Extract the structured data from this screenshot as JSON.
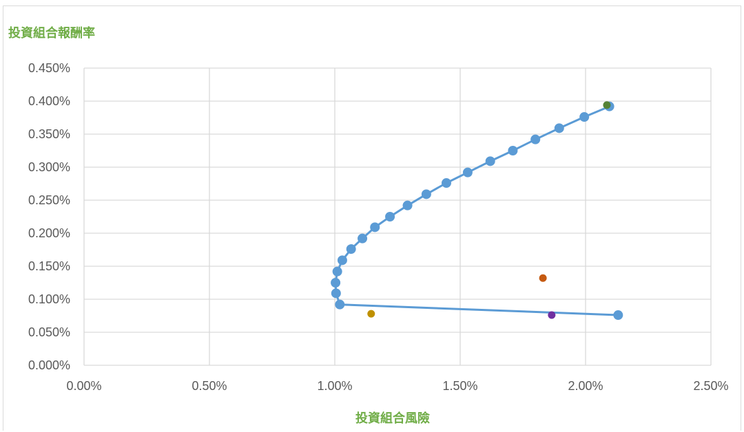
{
  "chart_data": {
    "type": "scatter",
    "title": "",
    "ylabel": "投資組合報酬率",
    "xlabel": "投資組合風險",
    "label_color": "#70ad47",
    "xlim": [
      0.0,
      2.5
    ],
    "ylim": [
      0.0,
      0.45
    ],
    "x_ticks": [
      "0.00%",
      "0.50%",
      "1.00%",
      "1.50%",
      "2.00%",
      "2.50%"
    ],
    "y_ticks": [
      "0.000%",
      "0.050%",
      "0.100%",
      "0.150%",
      "0.200%",
      "0.250%",
      "0.300%",
      "0.350%",
      "0.400%",
      "0.450%"
    ],
    "grid": true,
    "legend": "none",
    "series": [
      {
        "color": "#5b9bd5",
        "style": "line-with-markers",
        "points": [
          [
            2.13,
            0.076
          ],
          [
            1.02,
            0.092
          ],
          [
            1.005,
            0.109
          ],
          [
            1.003,
            0.125
          ],
          [
            1.01,
            0.142
          ],
          [
            1.03,
            0.159
          ],
          [
            1.065,
            0.176
          ],
          [
            1.11,
            0.192
          ],
          [
            1.16,
            0.209
          ],
          [
            1.22,
            0.225
          ],
          [
            1.29,
            0.242
          ],
          [
            1.365,
            0.259
          ],
          [
            1.445,
            0.276
          ],
          [
            1.53,
            0.292
          ],
          [
            1.62,
            0.309
          ],
          [
            1.71,
            0.325
          ],
          [
            1.8,
            0.342
          ],
          [
            1.895,
            0.359
          ],
          [
            1.995,
            0.376
          ],
          [
            2.095,
            0.392
          ]
        ]
      },
      {
        "color": "#c55a11",
        "style": "marker",
        "points": [
          [
            1.83,
            0.132
          ]
        ]
      },
      {
        "color": "#bf9000",
        "style": "marker",
        "points": [
          [
            1.145,
            0.078
          ]
        ]
      },
      {
        "color": "#7030a0",
        "style": "marker",
        "points": [
          [
            1.865,
            0.076
          ]
        ]
      },
      {
        "color": "#548235",
        "style": "marker",
        "points": [
          [
            2.085,
            0.394
          ]
        ]
      }
    ]
  }
}
